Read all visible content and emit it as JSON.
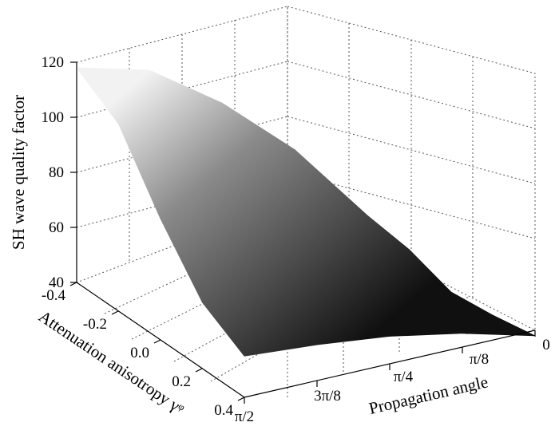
{
  "chart_data": {
    "type": "surface3d",
    "title": "",
    "zlabel": "SH wave quality factor",
    "ylabel": "Attenuation anisotropy γᵠ",
    "xlabel": "Propagation angle",
    "zlim": [
      40,
      120
    ],
    "z_ticks": [
      "40",
      "60",
      "80",
      "100",
      "120"
    ],
    "y_ticks": [
      "-0.4",
      "-0.2",
      "0.0",
      "0.2",
      "0.4"
    ],
    "x_ticks": [
      "π/2",
      "3π/8",
      "π/4",
      "π/8",
      "0"
    ],
    "grid": true,
    "colormap": "gray",
    "x": [
      "π/2",
      "3π/8",
      "π/4",
      "π/8",
      "0"
    ],
    "y": [
      -0.4,
      -0.2,
      0.0,
      0.2,
      0.4
    ],
    "z": [
      [
        118,
        111,
        93,
        70,
        40
      ],
      [
        108,
        101,
        85,
        64,
        38
      ],
      [
        84,
        78,
        68,
        52,
        33
      ],
      [
        64,
        61,
        55,
        45,
        35
      ],
      [
        55,
        53,
        50,
        45,
        38
      ]
    ]
  }
}
